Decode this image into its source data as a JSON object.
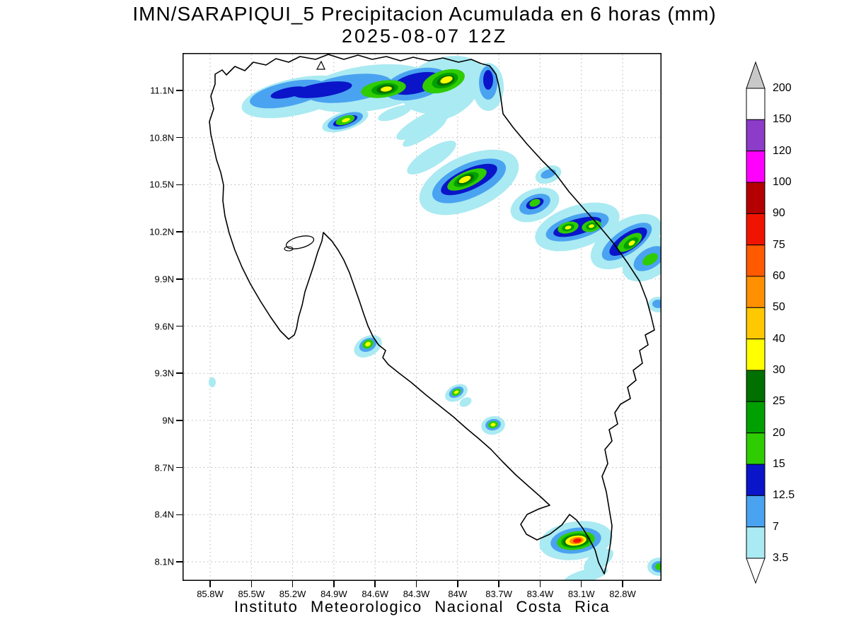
{
  "header": {
    "title": "IMN/SARAPIQUI_5 Precipitacion Acumulada en 6 horas (mm)",
    "datetime": "2025-08-07 12Z"
  },
  "footer": {
    "text": "Instituto Meteorologico Nacional Costa Rica"
  },
  "axes": {
    "lat_labels": [
      "11.1N",
      "10.8N",
      "10.5N",
      "10.2N",
      "9.9N",
      "9.6N",
      "9.3N",
      "9N",
      "8.7N",
      "8.4N",
      "8.1N"
    ],
    "lon_labels": [
      "85.8W",
      "85.5W",
      "85.2W",
      "84.9W",
      "84.6W",
      "84.3W",
      "84W",
      "83.7W",
      "83.4W",
      "83.1W",
      "82.8W"
    ]
  },
  "colorbar": {
    "tick_labels": [
      "200",
      "150",
      "120",
      "100",
      "90",
      "75",
      "60",
      "50",
      "40",
      "30",
      "25",
      "20",
      "15",
      "12.5",
      "7",
      "3.5"
    ],
    "segment_colors_top_to_bottom": [
      "#ffffff",
      "#8c3cc8",
      "#ff00ff",
      "#b40000",
      "#f01400",
      "#ff5a00",
      "#ff9000",
      "#ffc800",
      "#ffff00",
      "#007000",
      "#00a000",
      "#2ecc00",
      "#0a14c8",
      "#4aa3f0",
      "#aaeaf2"
    ],
    "arrow_top_color": "#c8c8c8",
    "arrow_bottom_color": "#ffffff"
  },
  "chart_data": {
    "type": "heatmap",
    "title": "IMN/SARAPIQUI_5 Precipitacion Acumulada en 6 horas (mm)",
    "valid_time": "2025-08-07 12Z",
    "units": "mm",
    "x_ticks": [
      "85.8W",
      "85.5W",
      "85.2W",
      "84.9W",
      "84.6W",
      "84.3W",
      "84W",
      "83.7W",
      "83.4W",
      "83.1W",
      "82.8W"
    ],
    "y_ticks": [
      "11.1N",
      "10.8N",
      "10.5N",
      "10.2N",
      "9.9N",
      "9.6N",
      "9.3N",
      "9N",
      "8.7N",
      "8.4N",
      "8.1N"
    ],
    "levels_mm": [
      3.5,
      7,
      12.5,
      15,
      20,
      25,
      30,
      40,
      50,
      60,
      75,
      90,
      100,
      120,
      150,
      200
    ],
    "palette_low_to_high": [
      "#aaeaf2",
      "#4aa3f0",
      "#0a14c8",
      "#2ecc00",
      "#00a000",
      "#007000",
      "#ffff00",
      "#ffc800",
      "#ff9000",
      "#ff5a00",
      "#f01400",
      "#b40000",
      "#ff00ff",
      "#8c3cc8",
      "#ffffff"
    ],
    "cells": [
      {
        "lat": "11.1N",
        "lon": "84.5W",
        "peak_mm": "30-40"
      },
      {
        "lat": "11.15N",
        "lon": "84.1W",
        "peak_mm": "30-40"
      },
      {
        "lat": "10.9N",
        "lon": "84.8W",
        "peak_mm": "30-40"
      },
      {
        "lat": "10.5N",
        "lon": "83.9W",
        "peak_mm": "30-40"
      },
      {
        "lat": "10.2N",
        "lon": "83.1W",
        "peak_mm": "30-40"
      },
      {
        "lat": "10.2N",
        "lon": "82.9W",
        "peak_mm": "30-40"
      },
      {
        "lat": "10.1N",
        "lon": "82.7W",
        "peak_mm": "25-30"
      },
      {
        "lat": "9.45N",
        "lon": "84.65W",
        "peak_mm": "30-40"
      },
      {
        "lat": "9.2N",
        "lon": "84.0W",
        "peak_mm": "30-40"
      },
      {
        "lat": "8.95N",
        "lon": "83.75W",
        "peak_mm": "30-40"
      },
      {
        "lat": "8.2N",
        "lon": "83.1W",
        "peak_mm": "75-90"
      },
      {
        "lat": "8.05N",
        "lon": "82.55W",
        "peak_mm": "15-25"
      }
    ]
  }
}
